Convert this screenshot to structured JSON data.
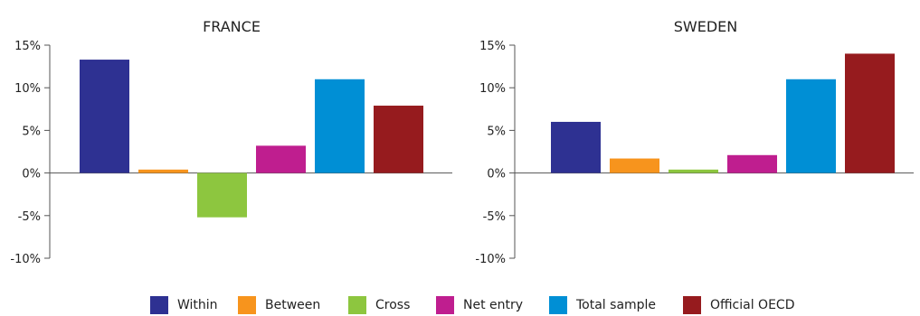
{
  "chart_data": [
    {
      "type": "bar",
      "title": "FRANCE",
      "categories": [
        "Within",
        "Between",
        "Cross",
        "Net entry",
        "Total sample",
        "Official OECD"
      ],
      "values": [
        13.3,
        0.4,
        -5.2,
        3.2,
        11.0,
        7.9
      ],
      "ylim": [
        -10,
        15
      ],
      "yticks": [
        "15%",
        "10%",
        "5%",
        "0%",
        "-5%",
        "-10%"
      ],
      "grid": false
    },
    {
      "type": "bar",
      "title": "SWEDEN",
      "categories": [
        "Within",
        "Between",
        "Cross",
        "Net entry",
        "Total sample",
        "Official OECD"
      ],
      "values": [
        6.0,
        1.7,
        0.4,
        2.1,
        11.0,
        14.0
      ],
      "ylim": [
        -10,
        15
      ],
      "yticks": [
        "15%",
        "10%",
        "5%",
        "0%",
        "-5%",
        "-10%"
      ],
      "grid": false
    }
  ],
  "legend": [
    {
      "label": "Within",
      "color": "#2e3192"
    },
    {
      "label": "Between",
      "color": "#f7941d"
    },
    {
      "label": "Cross",
      "color": "#8dc63f"
    },
    {
      "label": "Net entry",
      "color": "#bf1e8f"
    },
    {
      "label": "Total sample",
      "color": "#008fd5"
    },
    {
      "label": "Official OECD",
      "color": "#961b1e"
    }
  ]
}
